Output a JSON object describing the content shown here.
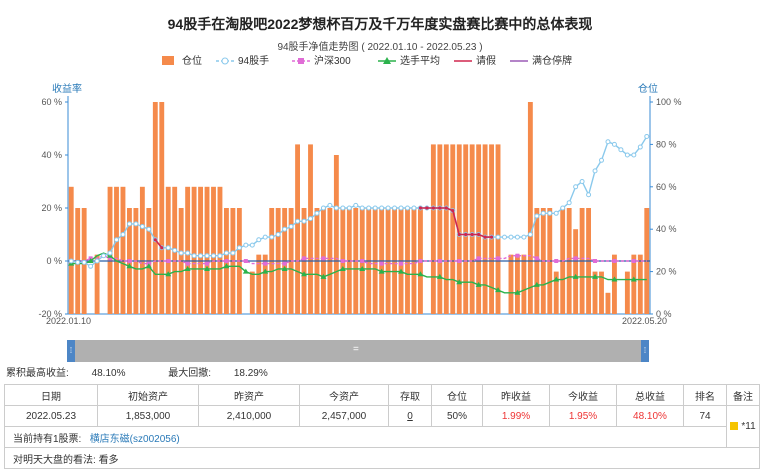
{
  "title": "94股手在淘股吧2022梦想杯百万及千万年度实盘赛比赛中的总体表现",
  "subtitle": "94股手净值走势图 ( 2022.01.10 - 2022.05.23 )",
  "legend": {
    "position": "top",
    "items": [
      {
        "label": "仓位",
        "color": "#f58a4b",
        "type": "bar"
      },
      {
        "label": "94股手",
        "color": "#8ac9ec",
        "type": "line-circle"
      },
      {
        "label": "沪深300",
        "color": "#e06cd6",
        "type": "line-square"
      },
      {
        "label": "选手平均",
        "color": "#2bb24c",
        "type": "line-triangle"
      },
      {
        "label": "请假",
        "color": "#d0264f",
        "type": "line"
      },
      {
        "label": "满仓停牌",
        "color": "#9b5bb5",
        "type": "line"
      }
    ]
  },
  "chart_data": {
    "type": "bar",
    "left_axis_title": "收益率",
    "right_axis_title": "仓位",
    "y_left": {
      "min": -20,
      "max": 60,
      "ticks": [
        "60 %",
        "40 %",
        "20 %",
        "0 %",
        "-20 %"
      ]
    },
    "y_right": {
      "min": 0,
      "max": 100,
      "ticks": [
        "100 %",
        "80 %",
        "60 %",
        "40 %",
        "20 %",
        "0 %"
      ]
    },
    "x_start_label": "2022.01.10",
    "x_end_label": "2022.05.20",
    "n_days": 90,
    "position_pct": [
      60,
      50,
      50,
      0,
      28,
      0,
      60,
      60,
      60,
      50,
      50,
      60,
      50,
      100,
      100,
      60,
      60,
      50,
      60,
      60,
      60,
      60,
      60,
      60,
      50,
      50,
      50,
      0,
      20,
      28,
      28,
      50,
      50,
      50,
      50,
      80,
      50,
      80,
      50,
      50,
      50,
      75,
      50,
      50,
      50,
      50,
      50,
      50,
      50,
      50,
      50,
      50,
      50,
      50,
      50,
      0,
      80,
      80,
      80,
      80,
      80,
      80,
      80,
      80,
      80,
      80,
      80,
      0,
      28,
      28,
      28,
      100,
      50,
      50,
      50,
      20,
      50,
      50,
      40,
      50,
      50,
      20,
      20,
      10,
      28,
      0,
      20,
      28,
      28,
      50
    ],
    "series_94": [
      0,
      -0.5,
      -0.5,
      -2,
      0,
      2,
      3,
      8,
      10,
      14,
      14,
      13,
      12,
      8,
      5,
      5,
      4,
      3,
      3,
      2,
      2,
      2,
      2,
      2,
      3,
      3,
      5,
      6,
      6,
      8,
      9,
      9,
      10,
      12,
      13,
      15,
      15,
      16,
      18,
      20,
      21,
      20,
      20,
      20,
      21,
      20,
      20,
      20,
      20,
      20,
      20,
      20,
      20,
      20,
      20,
      20,
      20,
      20,
      20,
      19,
      10,
      10,
      10,
      10,
      9,
      9,
      9,
      9,
      9,
      9,
      9,
      10,
      17,
      18,
      18,
      18,
      20,
      22,
      28,
      30,
      25,
      34,
      38,
      45,
      44,
      42,
      40,
      40,
      43,
      47
    ],
    "series_hs300": [
      0,
      0,
      0,
      1,
      1,
      2,
      1,
      1,
      0,
      0,
      0,
      -1,
      -1,
      0,
      0,
      0,
      0,
      0,
      -1,
      -1,
      -1,
      -1,
      0,
      0,
      0,
      0,
      0,
      0,
      -1,
      -1,
      -1,
      -1,
      -1,
      -1,
      0,
      0,
      1,
      1,
      1,
      1,
      1,
      1,
      0,
      0,
      0,
      0,
      -1,
      -1,
      -1,
      -1,
      -1,
      -1,
      -1,
      -1,
      0,
      0,
      0,
      0,
      0,
      0,
      0,
      0,
      0,
      1,
      1,
      1,
      1,
      1,
      2,
      2,
      2,
      2,
      1,
      0,
      0,
      0,
      0,
      1,
      1,
      1,
      1,
      0,
      0,
      0,
      0,
      0,
      0,
      0,
      0,
      0
    ],
    "series_avg": [
      -1,
      -1,
      -1,
      0,
      2,
      3,
      2,
      0,
      -1,
      -2,
      -3,
      -3,
      -2,
      -5,
      -5,
      -5,
      -4,
      -4,
      -3,
      -3,
      -3,
      -3,
      -3,
      -3,
      -2,
      -2,
      -2,
      -4,
      -5,
      -5,
      -4,
      -4,
      -3,
      -3,
      -3,
      -4,
      -5,
      -5,
      -5,
      -6,
      -5,
      -4,
      -3,
      -3,
      -3,
      -3,
      -3,
      -3,
      -4,
      -4,
      -4,
      -4,
      -5,
      -5,
      -5,
      -6,
      -6,
      -6,
      -7,
      -7,
      -8,
      -8,
      -8,
      -9,
      -9,
      -10,
      -11,
      -12,
      -12,
      -12,
      -11,
      -10,
      -9,
      -9,
      -8,
      -7,
      -7,
      -6,
      -6,
      -6,
      -6,
      -6,
      -6,
      -7,
      -7,
      -7,
      -7,
      -7,
      -7,
      -7
    ],
    "leave_segments": [
      [
        13,
        14
      ],
      [
        54,
        65
      ]
    ]
  },
  "scroller_label": "=",
  "stats": {
    "max_return_label": "累积最高收益:",
    "max_return": "48.10%",
    "max_drawdown_label": "最大回撤:",
    "max_drawdown": "18.29%"
  },
  "table": {
    "headers": [
      "日期",
      "初始资产",
      "昨资产",
      "今资产",
      "存取",
      "仓位",
      "昨收益",
      "今收益",
      "总收益",
      "排名",
      "备注"
    ],
    "row": [
      "2022.05.23",
      "1,853,000",
      "2,410,000",
      "2,457,000",
      "0",
      "50%",
      "1.99%",
      "1.95%",
      "48.10%",
      "74"
    ],
    "note": "*11",
    "holdings_label": "当前持有1股票:",
    "holdings_stock": "横店东磁(sz002056)",
    "view_label": "对明天大盘的看法:",
    "view_value": "看多"
  }
}
